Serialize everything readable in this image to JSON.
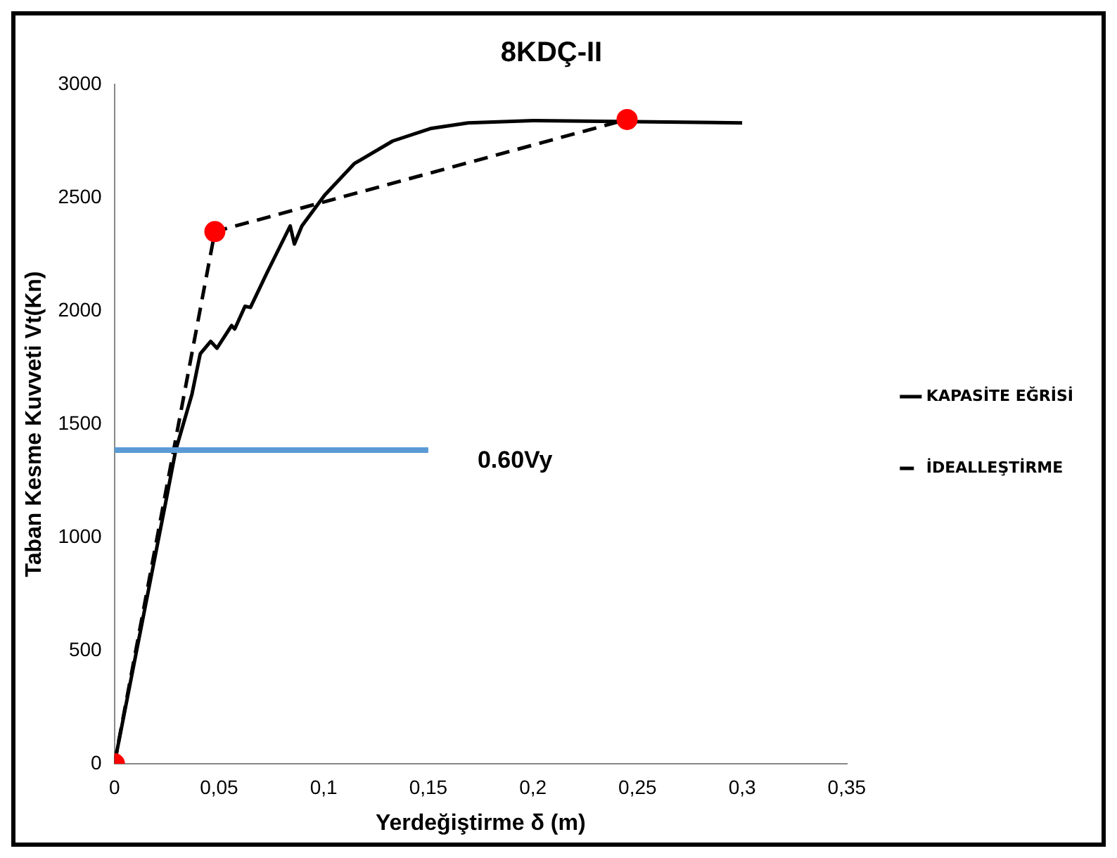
{
  "chart_data": {
    "type": "line",
    "title": "8KDÇ-II",
    "xlabel": "Yerdeğiştirme δ (m)",
    "ylabel": "Taban Kesme Kuvveti Vt(Kn)",
    "xlim": [
      0,
      0.35
    ],
    "xticks": [
      0,
      {
        "value": 0.05,
        "label": "0,05"
      },
      {
        "value": 0.1,
        "label": "0,1"
      },
      {
        "value": 0.15,
        "label": "0,15"
      },
      {
        "value": 0.2,
        "label": "0,2"
      },
      {
        "value": 0.25,
        "label": "0,25"
      },
      {
        "value": 0.3,
        "label": "0,3"
      },
      {
        "value": 0.35,
        "label": "0,35"
      }
    ],
    "ylim": [
      0,
      3000
    ],
    "yticks": [
      0,
      500,
      1000,
      1500,
      2000,
      2500,
      3000
    ],
    "grid": false,
    "legend": "right",
    "series": [
      {
        "name": "KAPASİTE EĞRİSİ",
        "color": "#000000",
        "line_style": "solid",
        "marker": "none",
        "x": [
          0,
          0.0244,
          0.0293,
          0.037,
          0.041,
          0.046,
          0.049,
          0.056,
          0.0575,
          0.0624,
          0.065,
          0.073,
          0.084,
          0.086,
          0.0896,
          0.1004,
          0.1146,
          0.133,
          0.151,
          0.169,
          0.2,
          0.3
        ],
        "values": [
          0,
          1150,
          1385,
          1630,
          1810,
          1865,
          1835,
          1935,
          1920,
          2020,
          2015,
          2170,
          2375,
          2295,
          2375,
          2510,
          2650,
          2750,
          2805,
          2830,
          2840,
          2830
        ]
      },
      {
        "name": "İDEALLEŞTİRME",
        "color": "#000000",
        "line_style": "dashed",
        "marker": "none",
        "x": [
          0,
          0.048,
          0.245
        ],
        "values": [
          0,
          2350,
          2845
        ]
      },
      {
        "type": "scatter",
        "color": "#ff0000",
        "marker": "circle",
        "x": [
          0,
          0.048,
          0.245
        ],
        "values": [
          0,
          2350,
          2845
        ]
      },
      {
        "name": "0.60Vy",
        "color": "#5b9bd5",
        "line_style": "solid",
        "marker": "none",
        "x": [
          0,
          0.15
        ],
        "values": [
          1385,
          1385
        ]
      }
    ]
  }
}
